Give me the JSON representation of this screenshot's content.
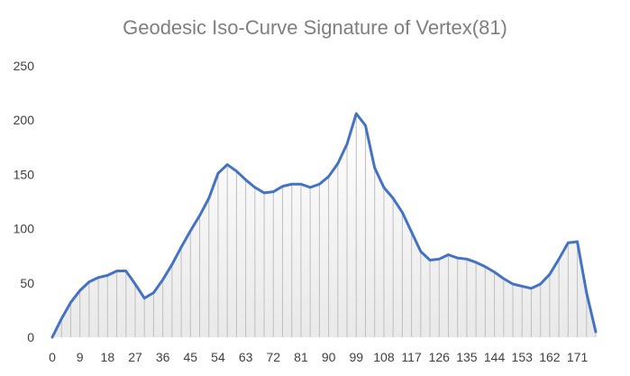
{
  "chart_data": {
    "type": "area",
    "title": "Geodesic Iso-Curve Signature of Vertex(81)",
    "xlabel": "",
    "ylabel": "",
    "ylim": [
      0,
      250
    ],
    "yticks": [
      "0",
      "50",
      "100",
      "150",
      "200",
      "250"
    ],
    "xticks": [
      "0",
      "9",
      "18",
      "27",
      "36",
      "45",
      "54",
      "63",
      "72",
      "81",
      "90",
      "99",
      "108",
      "117",
      "126",
      "135",
      "144",
      "153",
      "162",
      "171"
    ],
    "xtick_values": [
      0,
      9,
      18,
      27,
      36,
      45,
      54,
      63,
      72,
      81,
      90,
      99,
      108,
      117,
      126,
      135,
      144,
      153,
      162,
      171
    ],
    "grid": false,
    "legend": "none",
    "series": [
      {
        "color": "#4472c4",
        "fill_top": "#ffffff",
        "fill_bottom": "#e9e9e9",
        "drop_line_color": "#bfbfbf",
        "x": [
          0,
          3,
          6,
          9,
          12,
          15,
          18,
          21,
          24,
          27,
          30,
          33,
          36,
          39,
          42,
          45,
          48,
          51,
          54,
          57,
          60,
          63,
          66,
          69,
          72,
          75,
          78,
          81,
          84,
          87,
          90,
          93,
          96,
          99,
          102,
          105,
          108,
          111,
          114,
          117,
          120,
          123,
          126,
          129,
          132,
          135,
          138,
          141,
          144,
          147,
          150,
          153,
          156,
          159,
          162,
          165,
          168,
          171,
          174,
          177
        ],
        "values": [
          0,
          17,
          32,
          43,
          51,
          55,
          57,
          61,
          61,
          49,
          36,
          41,
          53,
          67,
          83,
          98,
          112,
          128,
          151,
          159,
          153,
          145,
          138,
          133,
          134,
          139,
          141,
          141,
          138,
          141,
          148,
          160,
          178,
          206,
          195,
          156,
          138,
          128,
          115,
          97,
          79,
          71,
          72,
          76,
          73,
          72,
          69,
          65,
          60,
          54,
          49,
          47,
          45,
          49,
          58,
          72,
          87,
          88,
          41,
          5
        ]
      }
    ]
  }
}
